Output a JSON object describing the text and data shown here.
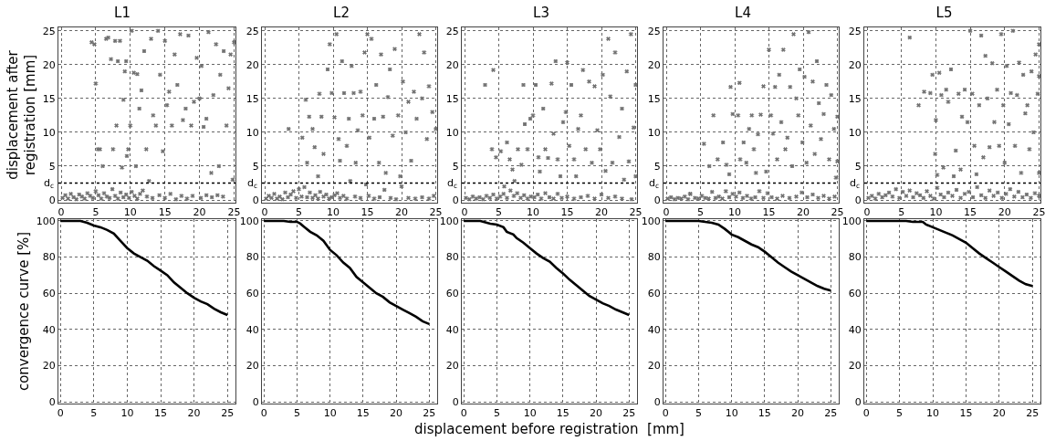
{
  "chart_data": [
    {
      "type": "scatter",
      "title": "L1",
      "ylabel": "displacement after registration [mm]",
      "marker": "cross",
      "grid": true,
      "xlim": [
        -0.4,
        25.2
      ],
      "ylim": [
        -0.4,
        25.5
      ],
      "xticks": [
        0,
        5,
        10,
        15,
        20,
        25
      ],
      "yticks": [
        0,
        5,
        10,
        15,
        20,
        25
      ],
      "ref_lines": [
        {
          "axis": "y",
          "value": 2.5,
          "label": "d$_{c}$",
          "line_style": "dotted",
          "color": "#000000"
        }
      ],
      "series": [
        {
          "color": "#707070",
          "x": [
            0.2,
            0.6,
            1.0,
            1.4,
            1.8,
            2.2,
            2.6,
            3.0,
            3.4,
            3.8,
            4.2,
            4.6,
            5.0,
            5.4,
            5.8,
            6.2,
            6.6,
            7.0,
            7.4,
            7.8,
            8.2,
            8.6,
            9.0,
            9.4,
            9.8,
            10.2,
            10.6,
            11.0,
            11.4,
            11.8,
            12.4,
            13.2,
            14.2,
            15.0,
            15.8,
            16.6,
            17.4,
            18.2,
            19.0,
            20.2,
            21.0,
            21.8,
            22.6,
            23.4,
            4.4,
            4.8,
            5.0,
            5.3,
            5.6,
            6.0,
            6.5,
            6.8,
            7.2,
            7.5,
            7.8,
            8.0,
            8.2,
            8.5,
            8.8,
            9.0,
            9.2,
            9.4,
            9.5,
            9.7,
            10.0,
            10.2,
            10.5,
            10.8,
            11.0,
            11.3,
            11.6,
            12.0,
            12.3,
            12.7,
            13.0,
            13.3,
            13.7,
            14.0,
            14.3,
            14.7,
            15.0,
            15.3,
            15.6,
            16.0,
            16.4,
            16.8,
            17.2,
            17.6,
            18.0,
            18.4,
            18.8,
            19.2,
            19.6,
            20.0,
            20.3,
            20.6,
            21.0,
            21.3,
            21.7,
            22.0,
            22.4,
            22.8,
            23.0,
            23.5,
            23.9,
            24.2,
            24.5,
            24.8,
            25.0
          ],
          "values": [
            0.3,
            0.7,
            0.2,
            0.9,
            0.4,
            0.1,
            0.8,
            0.5,
            0.2,
            1.0,
            0.6,
            0.3,
            1.3,
            0.7,
            0.2,
            1.0,
            0.5,
            0.3,
            1.6,
            0.6,
            0.2,
            1.1,
            0.4,
            0.8,
            0.3,
            1.2,
            0.6,
            0.2,
            0.9,
            1.4,
            0.5,
            0.3,
            0.7,
            0.3,
            0.9,
            0.1,
            0.6,
            0.2,
            0.6,
            0.3,
            0.7,
            0.4,
            0.7,
            0.5,
            23.3,
            23.0,
            17.2,
            7.5,
            7.5,
            5.0,
            23.8,
            24.0,
            20.8,
            7.5,
            23.5,
            11.0,
            20.5,
            23.5,
            4.8,
            14.8,
            19.0,
            20.5,
            6.5,
            7.5,
            11.0,
            25.0,
            18.8,
            5.0,
            18.6,
            13.5,
            16.2,
            22.0,
            7.5,
            2.8,
            23.8,
            12.5,
            11.0,
            25.0,
            18.5,
            7.2,
            23.5,
            14.0,
            16.0,
            11.0,
            21.5,
            17.0,
            24.5,
            11.8,
            13.5,
            24.3,
            11.0,
            14.5,
            21.0,
            15.0,
            19.8,
            10.8,
            12.0,
            24.8,
            4.0,
            15.5,
            23.0,
            5.0,
            18.5,
            22.0,
            11.0,
            16.5,
            21.5,
            3.0,
            23.3
          ]
        }
      ]
    },
    {
      "type": "scatter",
      "title": "L2",
      "marker": "cross",
      "grid": true,
      "xlim": [
        -0.4,
        25.2
      ],
      "ylim": [
        -0.4,
        25.5
      ],
      "xticks": [
        0,
        5,
        10,
        15,
        20,
        25
      ],
      "yticks": [
        0,
        5,
        10,
        15,
        20,
        25
      ],
      "ref_lines": [
        {
          "axis": "y",
          "value": 2.5,
          "label": "d$_{c}$",
          "line_style": "dotted",
          "color": "#000000"
        }
      ],
      "series": [
        {
          "color": "#707070",
          "x": [
            0.2,
            0.6,
            1.0,
            1.4,
            1.8,
            2.2,
            2.6,
            3.0,
            3.4,
            3.8,
            4.2,
            4.6,
            5.0,
            5.4,
            5.8,
            6.2,
            6.6,
            7.0,
            7.4,
            7.8,
            8.1,
            8.6,
            9.0,
            9.4,
            9.8,
            10.2,
            10.6,
            11.0,
            11.5,
            12.0,
            12.5,
            13.2,
            14.0,
            14.8,
            15.2,
            16.0,
            16.8,
            17.5,
            18.4,
            19.2,
            20.0,
            21.0,
            22.0,
            23.0,
            24.0,
            24.7,
            3.5,
            5.5,
            6.0,
            6.2,
            6.5,
            7.0,
            7.3,
            7.8,
            8.0,
            8.3,
            8.6,
            9.2,
            9.5,
            9.8,
            10.2,
            10.5,
            10.8,
            11.0,
            11.3,
            11.6,
            12.0,
            12.3,
            12.7,
            13.0,
            13.3,
            13.6,
            14.0,
            14.3,
            14.6,
            15.0,
            15.3,
            15.6,
            16.0,
            16.3,
            16.7,
            17.0,
            17.3,
            17.7,
            18.0,
            18.3,
            18.7,
            19.0,
            19.5,
            19.8,
            20.2,
            20.6,
            21.0,
            21.4,
            21.8,
            22.2,
            22.6,
            23.0,
            23.3,
            23.7,
            24.0,
            24.5,
            25.0
          ],
          "values": [
            0.2,
            0.6,
            0.3,
            0.9,
            0.2,
            0.5,
            0.1,
            1.1,
            0.4,
            0.8,
            1.3,
            0.3,
            1.6,
            0.5,
            1.9,
            0.4,
            1.1,
            0.3,
            0.7,
            0.2,
            1.2,
            0.5,
            0.8,
            0.2,
            0.4,
            0.7,
            1.0,
            0.3,
            0.6,
            0.2,
            2.8,
            0.5,
            0.3,
            2.3,
            0.6,
            0.2,
            0.4,
            1.5,
            0.3,
            0.1,
            2.0,
            0.3,
            0.2,
            0.4,
            0.2,
            0.6,
            10.5,
            9.2,
            14.8,
            5.5,
            12.3,
            10.5,
            7.8,
            3.5,
            15.7,
            12.3,
            6.8,
            19.3,
            23.0,
            15.8,
            12.2,
            24.5,
            9.0,
            5.8,
            20.5,
            15.8,
            8.0,
            12.0,
            19.8,
            15.8,
            5.5,
            10.3,
            16.0,
            12.5,
            21.8,
            24.5,
            9.2,
            23.8,
            12.0,
            17.0,
            5.5,
            21.5,
            12.3,
            4.0,
            15.2,
            19.3,
            9.5,
            22.3,
            12.5,
            3.5,
            17.5,
            10.0,
            14.5,
            5.8,
            16.0,
            12.0,
            24.5,
            15.0,
            21.8,
            9.0,
            16.8,
            13.0,
            10.5
          ]
        }
      ]
    },
    {
      "type": "scatter",
      "title": "L3",
      "marker": "cross",
      "grid": true,
      "xlim": [
        -0.4,
        25.2
      ],
      "ylim": [
        -0.4,
        25.5
      ],
      "xticks": [
        0,
        5,
        10,
        15,
        20,
        25
      ],
      "yticks": [
        0,
        5,
        10,
        15,
        20,
        25
      ],
      "ref_lines": [
        {
          "axis": "y",
          "value": 2.5,
          "label": "d$_{c}$",
          "line_style": "dotted",
          "color": "#000000"
        }
      ],
      "series": [
        {
          "color": "#707070",
          "x": [
            0.2,
            0.7,
            1.2,
            1.7,
            2.2,
            2.7,
            3.2,
            3.7,
            4.2,
            4.7,
            5.2,
            5.7,
            6.2,
            6.7,
            7.2,
            7.7,
            8.2,
            8.7,
            9.2,
            9.7,
            10.2,
            10.7,
            11.2,
            11.8,
            12.4,
            13.0,
            13.6,
            14.2,
            15.0,
            16.0,
            17.0,
            18.0,
            19.0,
            20.0,
            21.0,
            22.0,
            23.0,
            24.4,
            3.0,
            4.0,
            4.2,
            4.6,
            5.3,
            5.8,
            6.2,
            6.6,
            7.0,
            7.3,
            7.8,
            8.3,
            8.6,
            8.8,
            9.2,
            9.6,
            10.0,
            10.4,
            10.8,
            11.0,
            11.5,
            11.8,
            12.2,
            12.7,
            13.0,
            13.3,
            13.6,
            14.0,
            14.4,
            14.8,
            15.0,
            15.3,
            15.6,
            16.0,
            16.3,
            16.6,
            17.0,
            17.3,
            17.7,
            18.2,
            18.6,
            19.0,
            19.4,
            19.8,
            20.2,
            20.6,
            21.0,
            21.3,
            21.6,
            22.0,
            22.6,
            23.0,
            23.3,
            23.7,
            24.0,
            24.3,
            24.7,
            25.0,
            25.0
          ],
          "values": [
            0.3,
            0.1,
            0.5,
            0.2,
            0.4,
            0.1,
            0.6,
            0.3,
            0.8,
            0.2,
            0.5,
            0.9,
            0.3,
            1.4,
            0.6,
            1.0,
            0.3,
            0.7,
            0.2,
            0.5,
            0.4,
            0.8,
            0.2,
            1.0,
            0.4,
            0.2,
            0.9,
            0.3,
            0.5,
            0.2,
            0.4,
            0.6,
            0.2,
            0.8,
            0.3,
            0.5,
            0.2,
            0.1,
            17.0,
            7.5,
            19.2,
            6.3,
            7.2,
            2.0,
            8.5,
            6.0,
            4.5,
            2.8,
            7.5,
            5.2,
            17.0,
            11.2,
            7.5,
            12.0,
            12.5,
            17.0,
            6.3,
            4.2,
            13.5,
            7.5,
            6.2,
            17.2,
            9.8,
            20.5,
            6.0,
            3.5,
            11.5,
            13.0,
            20.3,
            8.0,
            17.0,
            6.0,
            3.5,
            10.5,
            12.5,
            19.2,
            7.5,
            17.5,
            5.5,
            16.8,
            10.3,
            7.5,
            18.5,
            4.3,
            23.8,
            15.3,
            5.5,
            21.8,
            9.3,
            13.5,
            3.0,
            19.0,
            5.7,
            24.5,
            10.7,
            17.0,
            3.5
          ]
        }
      ]
    },
    {
      "type": "scatter",
      "title": "L4",
      "marker": "cross",
      "grid": true,
      "xlim": [
        -0.4,
        25.2
      ],
      "ylim": [
        -0.4,
        25.5
      ],
      "xticks": [
        0,
        5,
        10,
        15,
        20,
        25
      ],
      "yticks": [
        0,
        5,
        10,
        15,
        20,
        25
      ],
      "ref_lines": [
        {
          "axis": "y",
          "value": 2.5,
          "label": "d$_{c}$",
          "line_style": "dotted",
          "color": "#000000"
        }
      ],
      "series": [
        {
          "color": "#707070",
          "x": [
            0.2,
            0.7,
            1.2,
            1.7,
            2.2,
            2.7,
            3.2,
            3.5,
            4.2,
            4.7,
            5.2,
            5.7,
            6.2,
            6.7,
            7.2,
            7.7,
            8.2,
            8.7,
            9.2,
            9.7,
            10.2,
            10.7,
            11.2,
            11.8,
            12.4,
            13.0,
            13.6,
            14.2,
            14.8,
            15.4,
            16.2,
            17.0,
            18.0,
            19.0,
            19.8,
            20.6,
            21.4,
            22.2,
            23.0,
            23.8,
            24.6,
            3.5,
            5.5,
            6.3,
            6.9,
            7.5,
            8.3,
            8.8,
            9.2,
            9.4,
            9.7,
            10.5,
            10.7,
            10.8,
            11.3,
            11.7,
            12.1,
            12.5,
            12.8,
            13.1,
            13.4,
            13.8,
            14.2,
            14.6,
            15.0,
            15.3,
            15.6,
            15.9,
            16.2,
            16.5,
            16.8,
            17.1,
            17.4,
            17.7,
            18.1,
            18.4,
            18.6,
            19.0,
            19.3,
            19.5,
            19.9,
            20.2,
            20.5,
            20.8,
            21.1,
            21.4,
            21.7,
            22.0,
            22.3,
            22.6,
            23.0,
            23.4,
            23.8,
            24.1,
            24.5,
            24.8,
            25.0,
            25.0
          ],
          "values": [
            0.2,
            0.4,
            0.1,
            0.3,
            0.2,
            0.5,
            0.1,
            0.9,
            0.3,
            0.2,
            0.6,
            0.3,
            0.2,
            1.2,
            0.3,
            0.5,
            0.2,
            1.3,
            0.4,
            0.9,
            0.5,
            1.1,
            0.3,
            0.6,
            0.2,
            0.4,
            1.3,
            0.3,
            1.0,
            0.4,
            0.2,
            0.6,
            0.3,
            0.5,
            1.1,
            0.4,
            0.8,
            0.3,
            0.6,
            0.2,
            0.5,
            0.9,
            8.3,
            5.0,
            12.5,
            6.0,
            8.5,
            5.2,
            3.8,
            16.7,
            12.7,
            12.5,
            17.3,
            6.0,
            8.5,
            5.5,
            10.5,
            12.5,
            7.5,
            4.0,
            9.7,
            12.6,
            16.8,
            4.2,
            22.2,
            12.5,
            9.8,
            16.7,
            6.0,
            18.5,
            11.5,
            22.2,
            7.5,
            9.2,
            16.7,
            5.0,
            24.5,
            15.0,
            12.5,
            19.3,
            8.5,
            18.2,
            5.5,
            24.8,
            11.0,
            17.5,
            6.8,
            20.5,
            14.3,
            9.0,
            12.7,
            17.0,
            6.0,
            15.5,
            10.5,
            3.3,
            12.3,
            5.7
          ]
        }
      ]
    },
    {
      "type": "scatter",
      "title": "L5",
      "marker": "cross",
      "grid": true,
      "xlim": [
        -0.4,
        25.2
      ],
      "ylim": [
        -0.4,
        25.5
      ],
      "xticks": [
        0,
        5,
        10,
        15,
        20,
        25
      ],
      "yticks": [
        0,
        5,
        10,
        15,
        20,
        25
      ],
      "ref_lines": [
        {
          "axis": "y",
          "value": 2.5,
          "label": "d$_{c}$",
          "line_style": "dotted",
          "color": "#000000"
        }
      ],
      "series": [
        {
          "color": "#707070",
          "x": [
            0.2,
            0.7,
            1.2,
            1.7,
            2.2,
            2.7,
            3.2,
            3.7,
            4.2,
            4.7,
            5.2,
            5.7,
            6.2,
            6.7,
            7.2,
            7.7,
            8.2,
            8.7,
            9.2,
            9.7,
            10.2,
            10.7,
            11.2,
            11.8,
            12.4,
            13.0,
            13.6,
            14.2,
            14.8,
            15.4,
            16.0,
            16.6,
            17.2,
            17.8,
            18.4,
            19.0,
            19.6,
            20.2,
            20.8,
            21.4,
            22.0,
            22.6,
            23.2,
            23.8,
            24.4,
            25.0,
            6.2,
            7.5,
            8.3,
            9.2,
            9.5,
            9.9,
            10.0,
            10.2,
            10.5,
            10.8,
            11.1,
            11.5,
            11.8,
            12.2,
            12.6,
            12.9,
            13.3,
            13.6,
            13.8,
            14.2,
            14.6,
            15.0,
            15.3,
            15.6,
            15.9,
            16.3,
            16.6,
            16.9,
            17.2,
            17.5,
            17.8,
            18.2,
            18.5,
            18.9,
            19.2,
            19.5,
            19.8,
            20.0,
            20.3,
            20.6,
            20.9,
            21.2,
            21.5,
            21.8,
            22.1,
            22.4,
            22.7,
            23.0,
            23.3,
            23.6,
            23.9,
            24.2,
            24.5,
            24.8,
            25.0,
            25.0,
            25.0
          ],
          "values": [
            0.3,
            0.6,
            0.2,
            0.9,
            0.4,
            0.7,
            1.1,
            0.5,
            1.6,
            0.3,
            1.2,
            0.6,
            1.4,
            0.4,
            1.0,
            0.7,
            0.3,
            1.3,
            0.6,
            0.2,
            1.8,
            0.8,
            0.4,
            1.1,
            0.6,
            1.5,
            0.3,
            0.9,
            1.2,
            0.4,
            1.9,
            0.7,
            0.3,
            1.4,
            0.6,
            1.1,
            0.3,
            0.9,
            1.6,
            0.5,
            1.2,
            0.4,
            0.8,
            0.3,
            1.0,
            0.6,
            24.0,
            14.0,
            16.0,
            15.8,
            18.5,
            6.8,
            11.8,
            3.7,
            18.8,
            15.5,
            4.8,
            16.3,
            14.5,
            19.3,
            3.5,
            7.3,
            15.7,
            4.5,
            12.3,
            16.3,
            11.5,
            25.0,
            15.7,
            8.0,
            3.8,
            14.0,
            24.3,
            6.3,
            21.3,
            15.0,
            7.8,
            20.2,
            11.5,
            16.3,
            8.0,
            24.5,
            14.0,
            5.5,
            19.8,
            11.2,
            15.8,
            25.0,
            8.0,
            15.5,
            20.3,
            4.0,
            18.5,
            12.8,
            14.0,
            7.5,
            19.0,
            10.0,
            21.5,
            15.7,
            23.0,
            4.0,
            18.3
          ]
        }
      ]
    },
    {
      "type": "line",
      "ylabel": "convergence curve [%]",
      "line_style": "solid",
      "grid": true,
      "xlim": [
        -0.3,
        26.2
      ],
      "ylim": [
        -1,
        101
      ],
      "xticks": [
        0,
        5,
        10,
        15,
        20,
        25
      ],
      "yticks": [
        0,
        20,
        40,
        60,
        80,
        100
      ],
      "series": [
        {
          "color": "#000000",
          "x": [
            0,
            3,
            4,
            5,
            6,
            7,
            8,
            9,
            10,
            11,
            12,
            13,
            14,
            15,
            16,
            17,
            18,
            19,
            20,
            21,
            22,
            23,
            24,
            25
          ],
          "values": [
            100,
            100,
            99,
            97.5,
            96.5,
            95,
            93,
            89,
            85,
            82,
            80,
            78,
            75,
            72.5,
            70,
            66,
            63,
            60,
            57.5,
            55.5,
            54,
            51.5,
            49.5,
            48
          ]
        }
      ]
    },
    {
      "type": "line",
      "line_style": "solid",
      "grid": true,
      "xlim": [
        -0.3,
        26.2
      ],
      "ylim": [
        -1,
        101
      ],
      "xticks": [
        0,
        5,
        10,
        15,
        20,
        25
      ],
      "yticks": [
        0,
        20,
        40,
        60,
        80,
        100
      ],
      "series": [
        {
          "color": "#000000",
          "x": [
            0,
            2,
            3,
            4,
            5,
            5.5,
            6,
            7,
            8,
            9,
            10,
            11,
            12,
            13,
            14,
            15,
            16,
            17,
            18,
            19,
            20,
            21,
            22,
            23,
            24,
            25
          ],
          "values": [
            100,
            100,
            100,
            99.5,
            99.5,
            98.5,
            97,
            94,
            92,
            89,
            84,
            81,
            77,
            74,
            69,
            66,
            63,
            60,
            58,
            55,
            53,
            51,
            49,
            47,
            44.5,
            43
          ]
        }
      ]
    },
    {
      "type": "line",
      "xlabel": "displacement before registration  [mm]",
      "line_style": "solid",
      "grid": true,
      "xlim": [
        -0.3,
        26.2
      ],
      "ylim": [
        -1,
        101
      ],
      "xticks": [
        0,
        5,
        10,
        15,
        20,
        25
      ],
      "yticks": [
        0,
        20,
        40,
        60,
        80,
        100
      ],
      "series": [
        {
          "color": "#000000",
          "x": [
            0,
            2.5,
            3,
            4,
            5,
            6,
            6.5,
            7.5,
            8,
            9,
            10,
            11,
            12,
            13,
            14,
            15,
            16,
            17,
            18,
            19,
            20,
            21,
            22,
            23,
            24,
            25
          ],
          "values": [
            100,
            100,
            99.5,
            98.5,
            98,
            96.5,
            94,
            92.5,
            90.5,
            88,
            85,
            82,
            79.5,
            77.5,
            74,
            71,
            67.5,
            64.5,
            61.5,
            58.5,
            56.5,
            54.5,
            53,
            51,
            49.5,
            48
          ]
        }
      ]
    },
    {
      "type": "line",
      "line_style": "solid",
      "grid": true,
      "xlim": [
        -0.3,
        26.2
      ],
      "ylim": [
        -1,
        101
      ],
      "xticks": [
        0,
        5,
        10,
        15,
        20,
        25
      ],
      "yticks": [
        0,
        20,
        40,
        60,
        80,
        100
      ],
      "series": [
        {
          "color": "#000000",
          "x": [
            0,
            5,
            6,
            7,
            8,
            9,
            10,
            11,
            12,
            13,
            14,
            15,
            16,
            17,
            18,
            19,
            20,
            21,
            22,
            23,
            24,
            25
          ],
          "values": [
            100,
            100,
            99.5,
            99,
            98,
            95.5,
            92.5,
            91,
            89,
            87,
            85.5,
            83,
            80,
            77,
            74.5,
            72,
            70,
            68,
            66,
            64,
            62.5,
            61.5
          ]
        }
      ]
    },
    {
      "type": "line",
      "line_style": "solid",
      "grid": true,
      "xlim": [
        -0.3,
        26.2
      ],
      "ylim": [
        -1,
        101
      ],
      "xticks": [
        0,
        5,
        10,
        15,
        20,
        25
      ],
      "yticks": [
        0,
        20,
        40,
        60,
        80,
        100
      ],
      "series": [
        {
          "color": "#000000",
          "x": [
            0,
            6,
            7,
            8.5,
            9,
            10,
            11,
            12,
            13,
            14,
            15,
            16,
            17,
            18,
            19,
            20,
            21,
            22,
            23,
            24,
            25
          ],
          "values": [
            100,
            100,
            99.5,
            99.5,
            98,
            96.5,
            95,
            93.5,
            92,
            90,
            88,
            85,
            82,
            79.5,
            77,
            74.5,
            72,
            69.5,
            67,
            65,
            64
          ]
        }
      ]
    }
  ]
}
